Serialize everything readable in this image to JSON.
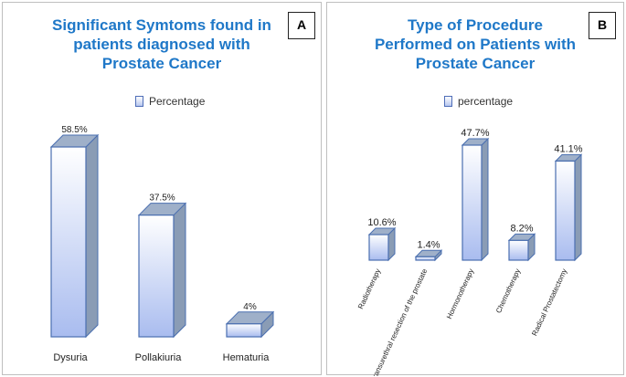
{
  "colors": {
    "title": "#1f78c8",
    "bar_front_top": "#ffffff",
    "bar_front_bottom": "#a9bcef",
    "bar_side": "#8a9cb5",
    "bar_top": "#9fb0c9",
    "bar_edge": "#4a6fb0"
  },
  "chart_data": [
    {
      "type": "bar",
      "panel_label": "A",
      "title": "Significant Symtoms found in patients diagnosed with Prostate Cancer",
      "title_lines": [
        "Significant Symtoms found in",
        "patients diagnosed with",
        "Prostate Cancer"
      ],
      "legend": "Percentage",
      "categories": [
        "Dysuria",
        "Pollakiuria",
        "Hematuria"
      ],
      "values": [
        58.5,
        37.5,
        4
      ],
      "data_labels": [
        "58.5%",
        "37.5%",
        "4%"
      ],
      "ylim": [
        0,
        58.5
      ],
      "xlabel": "",
      "ylabel": ""
    },
    {
      "type": "bar",
      "panel_label": "B",
      "title": "Type of Procedure Performed on Patients with Prostate Cancer",
      "title_lines": [
        "Type of Procedure",
        "Performed on Patients with",
        "Prostate Cancer"
      ],
      "legend": "percentage",
      "categories": [
        "Radiotherapy",
        "Transurethral resection of the prostate",
        "Hormonotherapy",
        "Chemotherapy",
        "Radical Prostatectomy"
      ],
      "values": [
        10.6,
        1.4,
        47.7,
        8.2,
        41.1
      ],
      "data_labels": [
        "10.6%",
        "1.4%",
        "47.7%",
        "8.2%",
        "41.1%"
      ],
      "ylim": [
        0,
        47.7
      ],
      "xlabel": "",
      "ylabel": ""
    }
  ]
}
